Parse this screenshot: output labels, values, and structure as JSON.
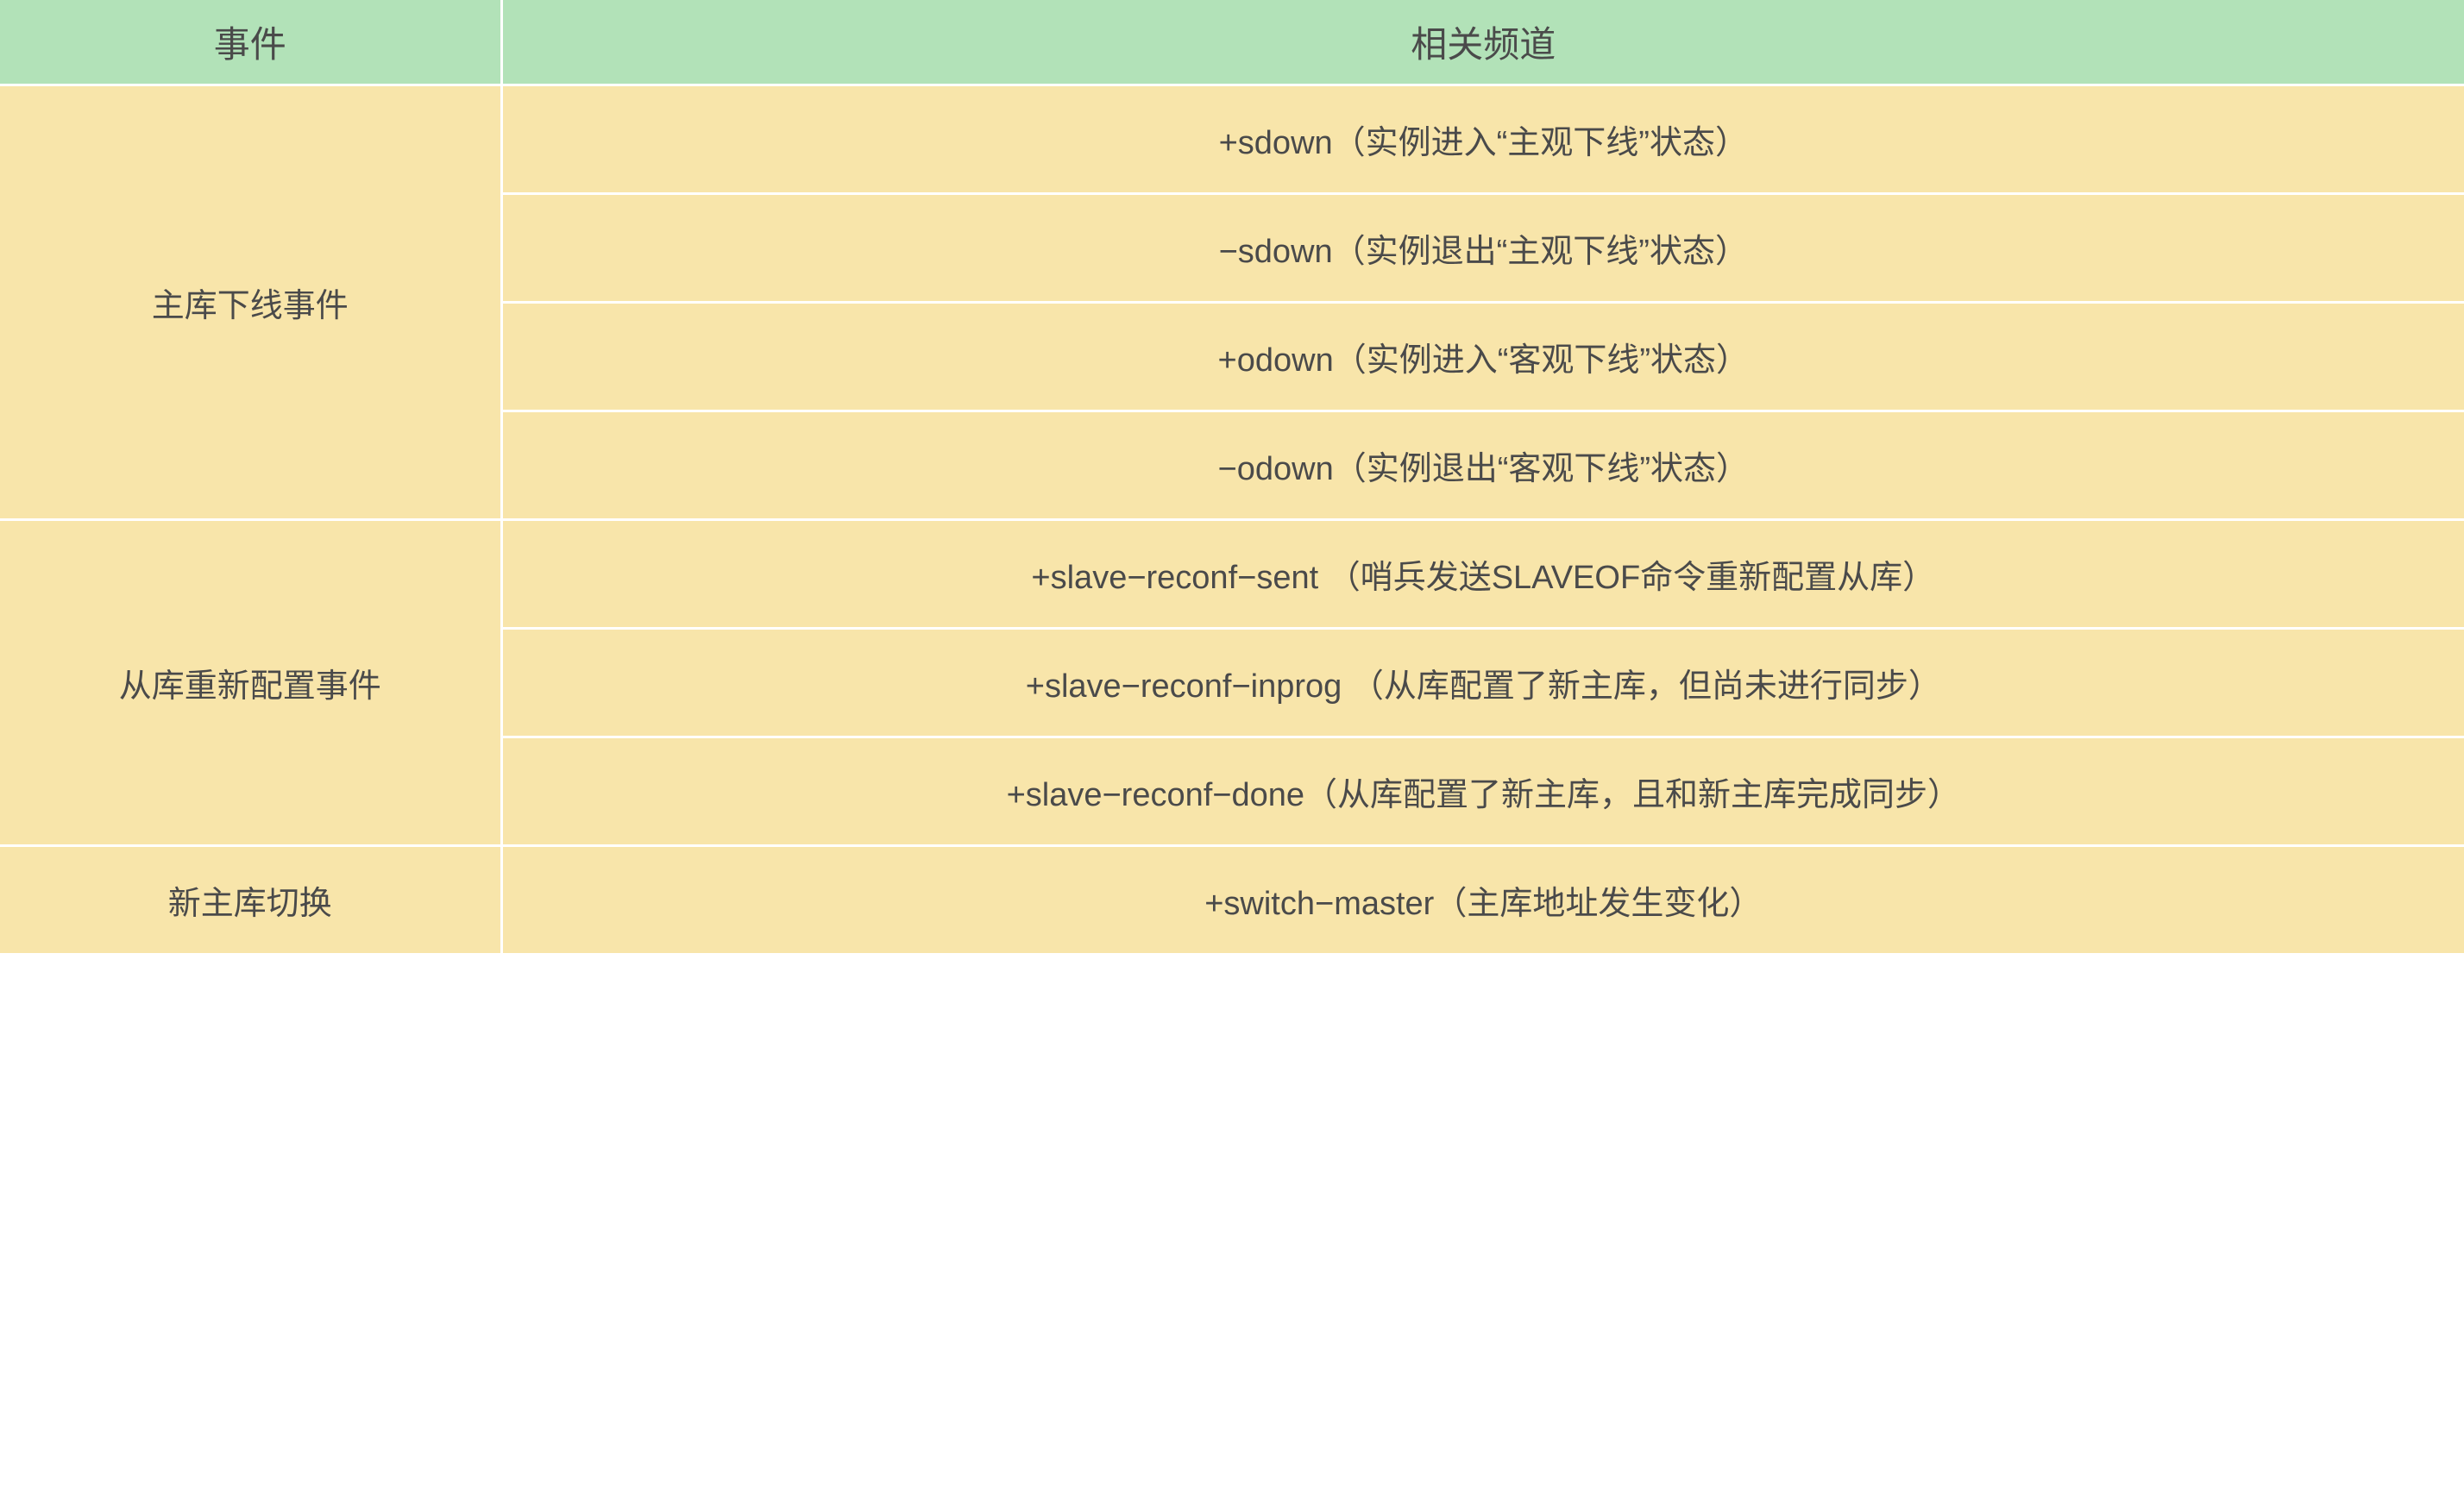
{
  "table": {
    "type": "table",
    "header_bg_color": "#b2e2b8",
    "body_bg_color": "#f8e5aa",
    "text_color": "#4a4a4a",
    "border_color": "#ffffff",
    "border_width": 3,
    "header_fontsize": 42,
    "body_fontsize": 38,
    "col_widths_pct": [
      20.4,
      79.6
    ],
    "headers": {
      "event": "事件",
      "channel": "相关频道"
    },
    "rows": [
      {
        "event": "主库下线事件",
        "channels": [
          "+sdown（实例进入“主观下线”状态）",
          "−sdown（实例退出“主观下线”状态）",
          "+odown（实例进入“客观下线”状态）",
          "−odown（实例退出“客观下线”状态）"
        ]
      },
      {
        "event": "从库重新配置事件",
        "channels": [
          "+slave−reconf−sent （哨兵发送SLAVEOF命令重新配置从库）",
          "+slave−reconf−inprog （从库配置了新主库，但尚未进行同步）",
          "+slave−reconf−done（从库配置了新主库，且和新主库完成同步）"
        ]
      },
      {
        "event": "新主库切换",
        "channels": [
          "+switch−master（主库地址发生变化）"
        ]
      }
    ]
  }
}
